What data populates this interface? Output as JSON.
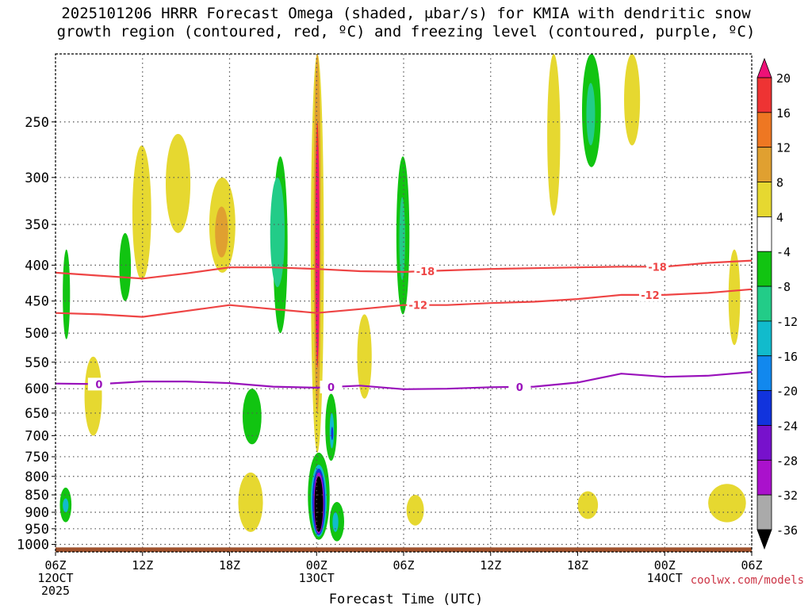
{
  "title_line1": "2025101206 HRRR Forecast Omega (shaded, μbar/s) for KMIA with dendritic snow",
  "title_line2": "growth region (contoured, red, ºC) and freezing level (contoured, purple, ºC)",
  "credit": "coolwx.com/models",
  "chart_data": {
    "type": "heatmap",
    "title": "2025101206 HRRR Forecast Omega (shaded, μbar/s) for KMIA with dendritic snow growth region (contoured, red, ºC) and freezing level (contoured, purple, ºC)",
    "xlabel": "Forecast Time (UTC)",
    "ylabel": "",
    "x_range_hours": [
      0,
      48
    ],
    "x_ticks": [
      {
        "hour": 0,
        "lines": [
          "06Z",
          "12OCT",
          "2025"
        ]
      },
      {
        "hour": 6,
        "lines": [
          "12Z"
        ]
      },
      {
        "hour": 12,
        "lines": [
          "18Z"
        ]
      },
      {
        "hour": 18,
        "lines": [
          "00Z",
          "13OCT"
        ]
      },
      {
        "hour": 24,
        "lines": [
          "06Z"
        ]
      },
      {
        "hour": 30,
        "lines": [
          "12Z"
        ]
      },
      {
        "hour": 36,
        "lines": [
          "18Z"
        ]
      },
      {
        "hour": 42,
        "lines": [
          "00Z",
          "14OCT"
        ]
      },
      {
        "hour": 48,
        "lines": [
          "06Z"
        ]
      }
    ],
    "y_range_hpa": [
      1025,
      200
    ],
    "y_ticks": [
      250,
      300,
      350,
      400,
      450,
      500,
      550,
      600,
      650,
      700,
      750,
      800,
      850,
      900,
      950,
      1000
    ],
    "colorbar": {
      "labels": [
        "20",
        "16",
        "12",
        "8",
        "4",
        "-4",
        "-8",
        "-12",
        "-16",
        "-20",
        "-24",
        "-28",
        "-32",
        "-36"
      ],
      "bins": [
        {
          "min": 20,
          "max": 24,
          "color": "#ee1177"
        },
        {
          "min": 16,
          "max": 20,
          "color": "#ee3333"
        },
        {
          "min": 12,
          "max": 16,
          "color": "#ee7722"
        },
        {
          "min": 8,
          "max": 12,
          "color": "#e0a030"
        },
        {
          "min": 4,
          "max": 8,
          "color": "#e6d830"
        },
        {
          "min": -4,
          "max": 4,
          "color": "#ffffff"
        },
        {
          "min": -8,
          "max": -4,
          "color": "#11c411"
        },
        {
          "min": -12,
          "max": -8,
          "color": "#22cc88"
        },
        {
          "min": -16,
          "max": -12,
          "color": "#11bbcc"
        },
        {
          "min": -20,
          "max": -16,
          "color": "#1188ee"
        },
        {
          "min": -24,
          "max": -20,
          "color": "#1133dd"
        },
        {
          "min": -28,
          "max": -24,
          "color": "#7711cc"
        },
        {
          "min": -32,
          "max": -28,
          "color": "#aa11cc"
        },
        {
          "min": -36,
          "max": -32,
          "color": "#aaaaaa"
        },
        {
          "min": -40,
          "max": -36,
          "color": "#000000"
        }
      ]
    },
    "omega_features": [
      {
        "t0": 17.6,
        "t1": 18.5,
        "p0": 200,
        "p1": 740,
        "value": 6
      },
      {
        "t0": 17.8,
        "t1": 18.3,
        "p0": 200,
        "p1": 650,
        "value": 10
      },
      {
        "t0": 17.9,
        "t1": 18.2,
        "p0": 250,
        "p1": 560,
        "value": 18
      },
      {
        "t0": 17.95,
        "t1": 18.2,
        "p0": 270,
        "p1": 540,
        "value": 22
      },
      {
        "t0": 17.4,
        "t1": 18.9,
        "p0": 740,
        "p1": 985,
        "value": -6
      },
      {
        "t0": 17.6,
        "t1": 18.7,
        "p0": 770,
        "p1": 975,
        "value": -14
      },
      {
        "t0": 17.7,
        "t1": 18.6,
        "p0": 780,
        "p1": 970,
        "value": -22
      },
      {
        "t0": 17.8,
        "t1": 18.5,
        "p0": 790,
        "p1": 965,
        "value": -30
      },
      {
        "t0": 17.85,
        "t1": 18.45,
        "p0": 800,
        "p1": 960,
        "value": -38
      },
      {
        "t0": 18.6,
        "t1": 19.4,
        "p0": 610,
        "p1": 760,
        "value": -6
      },
      {
        "t0": 18.9,
        "t1": 19.2,
        "p0": 650,
        "p1": 730,
        "value": -14
      },
      {
        "t0": 19.0,
        "t1": 19.15,
        "p0": 680,
        "p1": 710,
        "value": -22
      },
      {
        "t0": 18.9,
        "t1": 19.9,
        "p0": 870,
        "p1": 990,
        "value": -6
      },
      {
        "t0": 19.1,
        "t1": 19.5,
        "p0": 900,
        "p1": 960,
        "value": -14
      },
      {
        "t0": 15.0,
        "t1": 16.0,
        "p0": 280,
        "p1": 500,
        "value": -6
      },
      {
        "t0": 14.8,
        "t1": 15.8,
        "p0": 300,
        "p1": 430,
        "value": -10
      },
      {
        "t0": 23.5,
        "t1": 24.4,
        "p0": 280,
        "p1": 470,
        "value": -6
      },
      {
        "t0": 23.7,
        "t1": 24.1,
        "p0": 320,
        "p1": 420,
        "value": -10
      },
      {
        "t0": 36.3,
        "t1": 37.6,
        "p0": 200,
        "p1": 290,
        "value": -6
      },
      {
        "t0": 36.6,
        "t1": 37.2,
        "p0": 220,
        "p1": 270,
        "value": -10
      },
      {
        "t0": 10.6,
        "t1": 12.4,
        "p0": 300,
        "p1": 410,
        "value": 6
      },
      {
        "t0": 11.0,
        "t1": 11.9,
        "p0": 330,
        "p1": 390,
        "value": 10
      },
      {
        "t0": 5.3,
        "t1": 6.6,
        "p0": 270,
        "p1": 420,
        "value": 5
      },
      {
        "t0": 7.6,
        "t1": 9.3,
        "p0": 260,
        "p1": 360,
        "value": 5
      },
      {
        "t0": 39.2,
        "t1": 40.3,
        "p0": 200,
        "p1": 270,
        "value": 5
      },
      {
        "t0": 33.9,
        "t1": 34.8,
        "p0": 200,
        "p1": 340,
        "value": 5
      },
      {
        "t0": 46.4,
        "t1": 47.2,
        "p0": 380,
        "p1": 520,
        "value": 5
      },
      {
        "t0": 20.8,
        "t1": 21.8,
        "p0": 470,
        "p1": 620,
        "value": 5
      },
      {
        "t0": 2.0,
        "t1": 3.2,
        "p0": 540,
        "p1": 700,
        "value": 5
      },
      {
        "t0": 0.3,
        "t1": 1.1,
        "p0": 830,
        "p1": 930,
        "value": -6
      },
      {
        "t0": 0.5,
        "t1": 0.9,
        "p0": 860,
        "p1": 900,
        "value": -16
      },
      {
        "t0": 0.5,
        "t1": 1.0,
        "p0": 380,
        "p1": 510,
        "value": -6
      },
      {
        "t0": 4.4,
        "t1": 5.2,
        "p0": 360,
        "p1": 450,
        "value": -6
      },
      {
        "t0": 12.9,
        "t1": 14.2,
        "p0": 600,
        "p1": 720,
        "value": -6
      },
      {
        "t0": 45.0,
        "t1": 47.6,
        "p0": 820,
        "p1": 930,
        "value": 5
      },
      {
        "t0": 36.0,
        "t1": 37.4,
        "p0": 840,
        "p1": 920,
        "value": 5
      },
      {
        "t0": 24.2,
        "t1": 25.4,
        "p0": 850,
        "p1": 940,
        "value": 5
      },
      {
        "t0": 12.6,
        "t1": 14.3,
        "p0": 790,
        "p1": 960,
        "value": 5
      }
    ],
    "series": [
      {
        "name": "-18",
        "kind": "dendritic",
        "color": "#ee4444",
        "x": [
          0,
          3,
          6,
          9,
          12,
          15,
          18,
          21,
          24,
          27,
          30,
          33,
          36,
          39,
          42,
          45,
          48
        ],
        "y": [
          410,
          414,
          418,
          411,
          403,
          403,
          405,
          408,
          409,
          407,
          405,
          404,
          403,
          402,
          402,
          397,
          394
        ],
        "label_x": 25.5
      },
      {
        "name": "-12",
        "kind": "dendritic",
        "color": "#ee4444",
        "x": [
          0,
          3,
          6,
          9,
          12,
          15,
          18,
          21,
          24,
          27,
          30,
          33,
          36,
          39,
          42,
          45,
          48
        ],
        "y": [
          468,
          470,
          474,
          465,
          456,
          462,
          468,
          462,
          456,
          456,
          453,
          451,
          447,
          441,
          441,
          438,
          433
        ],
        "label_x": 25.0
      },
      {
        "name": "0",
        "kind": "freezing_level",
        "color": "#9911bb",
        "x": [
          0,
          3,
          6,
          9,
          12,
          15,
          18,
          21,
          24,
          27,
          30,
          33,
          36,
          39,
          42,
          45,
          48
        ],
        "y": [
          590,
          591,
          586,
          586,
          589,
          596,
          598,
          594,
          601,
          600,
          597,
          596,
          588,
          571,
          577,
          575,
          568
        ],
        "label_x": 3.0
      }
    ],
    "contour_labels_extra": [
      {
        "series": "-18",
        "x": 41.5
      },
      {
        "series": "-12",
        "x": 41.0
      },
      {
        "series": "0",
        "x": 19.0
      },
      {
        "series": "0",
        "x": 32.0
      }
    ]
  }
}
